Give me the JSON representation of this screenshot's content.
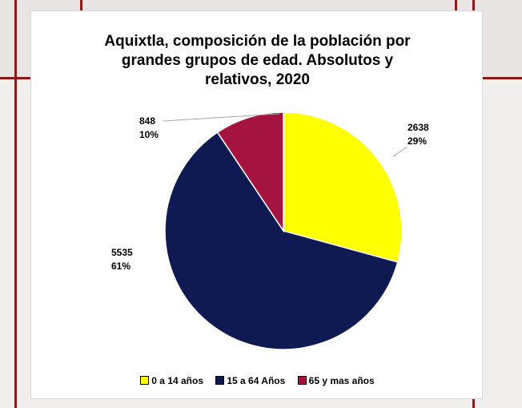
{
  "chart_data": {
    "type": "pie",
    "title_lines": [
      "Aquixtla, composición de la población por",
      "grandes grupos de edad. Absolutos y",
      "relativos, 2020"
    ],
    "categories": [
      "0 a 14 años",
      "15 a 64 Años",
      "65 y mas años"
    ],
    "values": [
      2638,
      5535,
      848
    ],
    "percent_labels": [
      "29%",
      "61%",
      "10%"
    ],
    "value_labels": [
      "2638",
      "5535",
      "848"
    ],
    "colors": [
      "#ffff00",
      "#101a52",
      "#a51340"
    ],
    "legend_position": "bottom",
    "start_angle_deg": 0,
    "direction": "clockwise"
  }
}
